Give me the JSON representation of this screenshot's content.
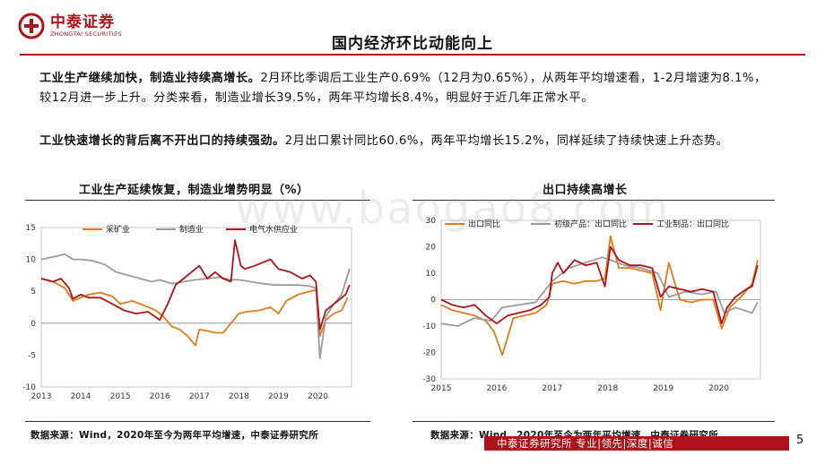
{
  "brand": {
    "name_cn": "中泰证券",
    "name_en": "ZHONGTAI SECURITIES",
    "color": "#b0121a"
  },
  "page_title": "国内经济环比动能向上",
  "para1": {
    "bold": "工业生产继续加快，制造业持续高增长。",
    "text": "2月环比季调后工业生产0.69%（12月为0.65%），从两年平均增速看，1-2月增速为8.1%，较12月进一步上升。分类来看，制造业增长39.5%，两年平均增长8.4%，明显好于近几年正常水平。"
  },
  "para2": {
    "bold": "工业快速增长的背后离不开出口的持续强劲。",
    "text": "2月出口累计同比60.6%，两年平均增长15.2%，同样延续了持续快速上升态势。"
  },
  "watermark": "www.baogao8.com",
  "chart_data": [
    {
      "type": "line",
      "title": "工业生产延续恢复，制造业增势明显（%）",
      "x_ticks": [
        "2013",
        "2014",
        "2015",
        "2016",
        "2017",
        "2018",
        "2019",
        "2020"
      ],
      "y_ticks": [
        -10,
        -5,
        0,
        5,
        10,
        15
      ],
      "ylim": [
        -10,
        15
      ],
      "xlim": [
        2013,
        2020.85
      ],
      "series": [
        {
          "name": "采矿业",
          "color": "#e07b1a",
          "x": [
            2013,
            2013.3,
            2013.6,
            2013.8,
            2014,
            2014.2,
            2014.5,
            2014.8,
            2015,
            2015.3,
            2015.6,
            2015.9,
            2016.1,
            2016.3,
            2016.5,
            2016.7,
            2016.9,
            2017,
            2017.2,
            2017.4,
            2017.6,
            2017.8,
            2018,
            2018.2,
            2018.5,
            2018.8,
            2019,
            2019.2,
            2019.5,
            2019.8,
            2019.95,
            2020.05,
            2020.2,
            2020.4,
            2020.6,
            2020.75
          ],
          "y": [
            7,
            6.5,
            5.5,
            3.5,
            4,
            4.5,
            4.8,
            4.2,
            3.0,
            3.5,
            2.8,
            2.0,
            1.0,
            -0.5,
            -1.0,
            -2.0,
            -3.5,
            -1.0,
            -1.2,
            -1.5,
            -1.5,
            0,
            1.5,
            1.8,
            2.0,
            2.5,
            1.5,
            3.5,
            4.5,
            5.0,
            5.2,
            -2.0,
            0.5,
            1.5,
            2.0,
            4.0
          ]
        },
        {
          "name": "制造业",
          "color": "#9a9a9a",
          "x": [
            2013,
            2013.3,
            2013.6,
            2013.8,
            2014,
            2014.3,
            2014.6,
            2014.9,
            2015.2,
            2015.5,
            2015.8,
            2016,
            2016.3,
            2016.6,
            2016.9,
            2017.2,
            2017.5,
            2017.8,
            2018,
            2018.3,
            2018.6,
            2018.9,
            2019.2,
            2019.5,
            2019.8,
            2019.95,
            2020.05,
            2020.2,
            2020.4,
            2020.6,
            2020.8
          ],
          "y": [
            10,
            10.4,
            10.8,
            10.0,
            10,
            9.8,
            9.2,
            8.0,
            7.5,
            7.0,
            6.5,
            6.8,
            6.2,
            6.5,
            6.8,
            7.0,
            7.2,
            6.8,
            6.8,
            6.5,
            6.2,
            6.0,
            6.0,
            6.0,
            5.8,
            5.5,
            -5.5,
            1.0,
            3.0,
            4.5,
            8.5
          ]
        },
        {
          "name": "电气水供应业",
          "color": "#b0121a",
          "x": [
            2013,
            2013.3,
            2013.5,
            2013.7,
            2013.8,
            2014,
            2014.2,
            2014.5,
            2014.8,
            2015.1,
            2015.4,
            2015.7,
            2016,
            2016.2,
            2016.4,
            2016.6,
            2016.8,
            2017,
            2017.2,
            2017.4,
            2017.6,
            2017.8,
            2017.9,
            2018.05,
            2018.15,
            2018.4,
            2018.6,
            2018.8,
            2019,
            2019.3,
            2019.6,
            2019.8,
            2019.95,
            2020.05,
            2020.2,
            2020.5,
            2020.7,
            2020.8
          ],
          "y": [
            7,
            6.5,
            7,
            5.5,
            3.8,
            4.5,
            4.0,
            4.0,
            3.0,
            2.0,
            1.5,
            1.8,
            0.5,
            3.0,
            6.0,
            7.0,
            8.0,
            9.0,
            7.0,
            8.0,
            7.0,
            6.5,
            13,
            9.0,
            8.5,
            9.0,
            9.5,
            10,
            8.5,
            8.0,
            7.0,
            7.5,
            6.5,
            -1.0,
            2.0,
            3.5,
            4.5,
            6.0
          ]
        }
      ]
    },
    {
      "type": "line",
      "title": "出口持续高增长",
      "x_ticks": [
        "2015",
        "2016",
        "2017",
        "2018",
        "2019",
        "2020"
      ],
      "y_ticks": [
        -30,
        -20,
        -10,
        0,
        10,
        20,
        30
      ],
      "ylim": [
        -30,
        30
      ],
      "xlim": [
        2015,
        2020.75
      ],
      "series": [
        {
          "name": "出口同比",
          "color": "#e07b1a",
          "x": [
            2015,
            2015.2,
            2015.4,
            2015.6,
            2015.8,
            2015.95,
            2016.1,
            2016.3,
            2016.5,
            2016.7,
            2016.9,
            2017,
            2017.2,
            2017.4,
            2017.6,
            2017.8,
            2017.95,
            2018.05,
            2018.2,
            2018.4,
            2018.6,
            2018.8,
            2018.95,
            2019.1,
            2019.3,
            2019.5,
            2019.7,
            2019.9,
            2020.05,
            2020.2,
            2020.4,
            2020.6,
            2020.7
          ],
          "y": [
            -2,
            -4,
            -5,
            -6,
            -8,
            -12,
            -21,
            -7,
            -6,
            -5,
            -2,
            6,
            7,
            6,
            7,
            7,
            8,
            24,
            12,
            12,
            11,
            10,
            -4,
            14,
            0,
            -1,
            0,
            0,
            -11,
            -3,
            1,
            6,
            15
          ]
        },
        {
          "name": "初级产品：出口同比",
          "color": "#9a9a9a",
          "x": [
            2015,
            2015.3,
            2015.6,
            2015.9,
            2016.1,
            2016.4,
            2016.7,
            2017,
            2017.3,
            2017.6,
            2017.9,
            2018.05,
            2018.3,
            2018.6,
            2018.9,
            2019.1,
            2019.4,
            2019.7,
            2019.95,
            2020.1,
            2020.3,
            2020.6,
            2020.7
          ],
          "y": [
            -9,
            -10,
            -7,
            -8,
            -3,
            -2,
            -1,
            7,
            12,
            14,
            16,
            15,
            13,
            12,
            10,
            1,
            3,
            2,
            3,
            -5,
            -3,
            -5,
            -1
          ]
        },
        {
          "name": "工业制品：出口同比",
          "color": "#b0121a",
          "x": [
            2015,
            2015.2,
            2015.4,
            2015.6,
            2015.8,
            2016,
            2016.2,
            2016.4,
            2016.6,
            2016.8,
            2016.95,
            2017,
            2017.1,
            2017.2,
            2017.4,
            2017.6,
            2017.8,
            2017.95,
            2018.05,
            2018.2,
            2018.4,
            2018.6,
            2018.8,
            2018.95,
            2019.1,
            2019.3,
            2019.5,
            2019.7,
            2019.9,
            2020.05,
            2020.15,
            2020.3,
            2020.5,
            2020.6,
            2020.7
          ],
          "y": [
            0,
            -2,
            -3,
            -2,
            -6,
            -9,
            -6,
            -5,
            -4,
            -2,
            1,
            10,
            14,
            10,
            15,
            13,
            14,
            5,
            20,
            15,
            13,
            13,
            12,
            1,
            5,
            4,
            3,
            4,
            3,
            -9,
            -3,
            1,
            4,
            5,
            13
          ]
        }
      ]
    }
  ],
  "source1": "数据来源：Wind，2020年至今为两年平均增速，中泰证券研究所",
  "source2": "数据来源：Wind，2020年至今为两年平均增速，中泰证券研究所",
  "footer": "中泰证券研究所 专业|领先|深度|诚信",
  "page_number": "5"
}
